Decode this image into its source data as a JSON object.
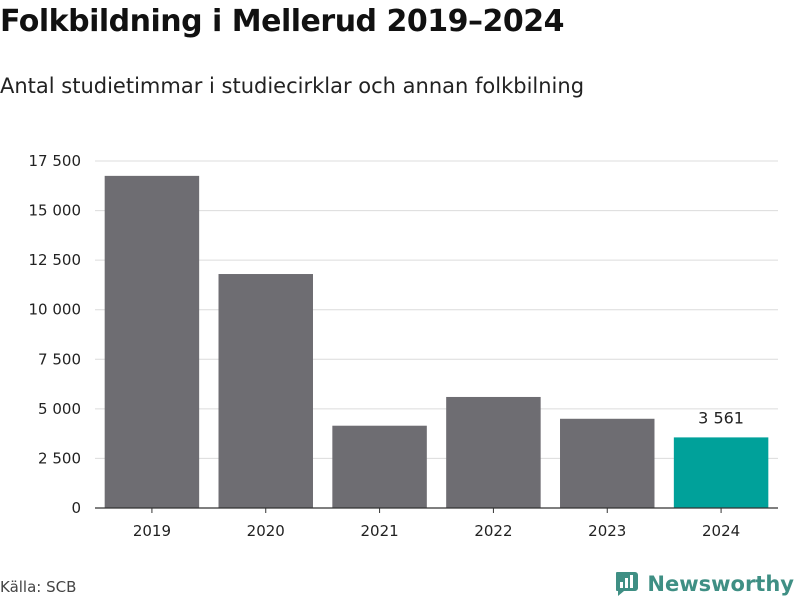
{
  "header": {
    "title": "Folkbildning i Mellerud 2019–2024",
    "subtitle": "Antal studietimmar i studiecirklar och annan folkbilning"
  },
  "footer": {
    "source": "Källa: SCB",
    "brand": "Newsworthy"
  },
  "colors": {
    "bar": "#6e6d72",
    "highlight": "#00a19a",
    "grid": "#dcdcdc",
    "axis": "#333333",
    "brand": "#3f8f84"
  },
  "chart_data": {
    "type": "bar",
    "title": "Folkbildning i Mellerud 2019–2024",
    "subtitle": "Antal studietimmar i studiecirklar och annan folkbilning",
    "categories": [
      "2019",
      "2020",
      "2021",
      "2022",
      "2023",
      "2024"
    ],
    "values": [
      16750,
      11800,
      4150,
      5600,
      4500,
      3561
    ],
    "highlight_index": 5,
    "data_labels": [
      {
        "index": 5,
        "text": "3 561"
      }
    ],
    "ylim": [
      0,
      17500
    ],
    "yticks": [
      0,
      2500,
      5000,
      7500,
      10000,
      12500,
      15000,
      17500
    ],
    "ytick_labels": [
      "0",
      "2 500",
      "5 000",
      "7 500",
      "10 000",
      "12 500",
      "15 000",
      "17 500"
    ],
    "xlabel": "",
    "ylabel": "",
    "grid": true,
    "legend": "none"
  }
}
